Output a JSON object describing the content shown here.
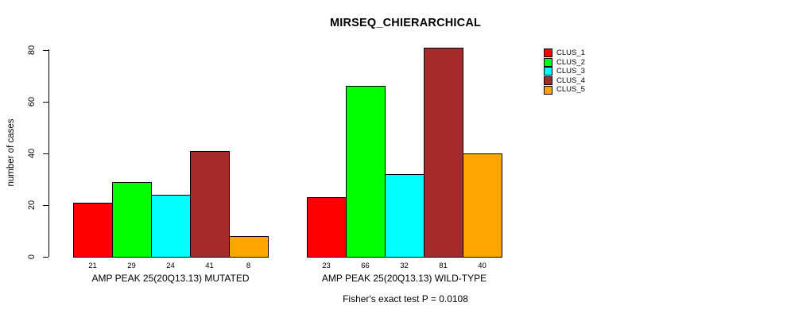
{
  "title": "MIRSEQ_CHIERARCHICAL",
  "footer": "Fisher's exact test P = 0.0108",
  "y_axis": {
    "label": "number of cases",
    "ticks": [
      0,
      20,
      40,
      60,
      80
    ]
  },
  "legend": {
    "items": [
      {
        "label": "CLUS_1",
        "color": "#FF0000"
      },
      {
        "label": "CLUS_2",
        "color": "#00FF00"
      },
      {
        "label": "CLUS_3",
        "color": "#00FFFF"
      },
      {
        "label": "CLUS_4",
        "color": "#A52A2A"
      },
      {
        "label": "CLUS_5",
        "color": "#FFA500"
      }
    ]
  },
  "chart_data": {
    "type": "bar",
    "title": "MIRSEQ_CHIERARCHICAL",
    "ylabel": "number of cases",
    "xlabel": "",
    "ylim": [
      0,
      80
    ],
    "yticks": [
      0,
      20,
      40,
      60,
      80
    ],
    "grid": false,
    "legend_position": "right",
    "categories": [
      "AMP PEAK 25(20Q13.13) MUTATED",
      "AMP PEAK 25(20Q13.13) WILD-TYPE"
    ],
    "series": [
      {
        "name": "CLUS_1",
        "color": "#FF0000",
        "values": [
          21,
          23
        ]
      },
      {
        "name": "CLUS_2",
        "color": "#00FF00",
        "values": [
          29,
          66
        ]
      },
      {
        "name": "CLUS_3",
        "color": "#00FFFF",
        "values": [
          24,
          32
        ]
      },
      {
        "name": "CLUS_4",
        "color": "#A52A2A",
        "values": [
          41,
          81
        ]
      },
      {
        "name": "CLUS_5",
        "color": "#FFA500",
        "values": [
          8,
          40
        ]
      }
    ],
    "bar_value_labels": [
      [
        21,
        29,
        24,
        41,
        8
      ],
      [
        23,
        66,
        32,
        81,
        40
      ]
    ],
    "annotation": "Fisher's exact test P = 0.0108"
  }
}
